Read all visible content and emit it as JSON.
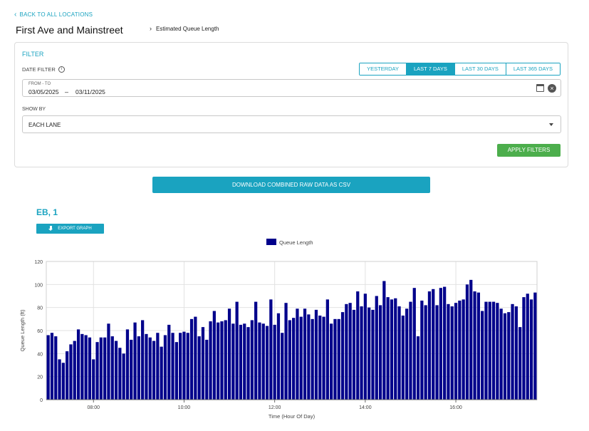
{
  "nav": {
    "back_label": "BACK TO ALL LOCATIONS"
  },
  "page": {
    "title": "First Ave and Mainstreet",
    "breadcrumb": "Estimated Queue Length"
  },
  "filter": {
    "heading": "FILTER",
    "date_filter_label": "DATE FILTER",
    "ranges": [
      {
        "label": "YESTERDAY",
        "active": false
      },
      {
        "label": "LAST 7 DAYS",
        "active": true
      },
      {
        "label": "LAST 30 DAYS",
        "active": false
      },
      {
        "label": "LAST 365 DAYS",
        "active": false
      }
    ],
    "date_caption": "FROM - TO",
    "date_from": "03/05/2025",
    "date_separator": "–",
    "date_to": "03/11/2025",
    "show_by_label": "SHOW BY",
    "show_by_value": "EACH LANE",
    "apply_label": "APPLY FILTERS"
  },
  "download_label": "DOWNLOAD COMBINED RAW DATA AS CSV",
  "chart": {
    "title": "EB, 1",
    "export_label": "EXPORT GRAPH"
  },
  "colors": {
    "accent": "#1aa3c0",
    "apply": "#4cae4c",
    "bar": "#00008b"
  },
  "chart_data": {
    "type": "bar",
    "series": [
      {
        "name": "Queue Length",
        "values": [
          56,
          58,
          55,
          35,
          32,
          42,
          48,
          51,
          61,
          57,
          56,
          54,
          35,
          50,
          54,
          54,
          66,
          55,
          51,
          45,
          40,
          61,
          52,
          67,
          55,
          69,
          57,
          54,
          51,
          58,
          46,
          56,
          65,
          58,
          50,
          58,
          59,
          58,
          70,
          72,
          55,
          63,
          52,
          68,
          77,
          67,
          68,
          69,
          79,
          66,
          85,
          65,
          66,
          63,
          69,
          85,
          67,
          66,
          64,
          87,
          65,
          75,
          58,
          84,
          69,
          71,
          79,
          72,
          79,
          74,
          70,
          78,
          73,
          72,
          87,
          66,
          70,
          70,
          76,
          83,
          84,
          78,
          94,
          81,
          92,
          80,
          78,
          90,
          82,
          103,
          89,
          87,
          88,
          81,
          73,
          79,
          85,
          97,
          55,
          86,
          82,
          94,
          96,
          82,
          97,
          98,
          83,
          81,
          84,
          86,
          87,
          100,
          104,
          94,
          93,
          77,
          85,
          85,
          85,
          84,
          79,
          75,
          76,
          83,
          81,
          63,
          89,
          92,
          87,
          93
        ]
      }
    ],
    "x_ticks": [
      "08:00",
      "10:00",
      "12:00",
      "14:00",
      "16:00"
    ],
    "x_tick_bar_index": [
      12,
      36,
      60,
      84,
      108
    ],
    "y_ticks": [
      0,
      20,
      40,
      60,
      80,
      100,
      120
    ],
    "ylim": [
      0,
      120
    ],
    "xlabel": "Time (Hour Of Day)",
    "ylabel": "Queue Length (ft)",
    "legend_position": "top-center",
    "grid": true
  }
}
